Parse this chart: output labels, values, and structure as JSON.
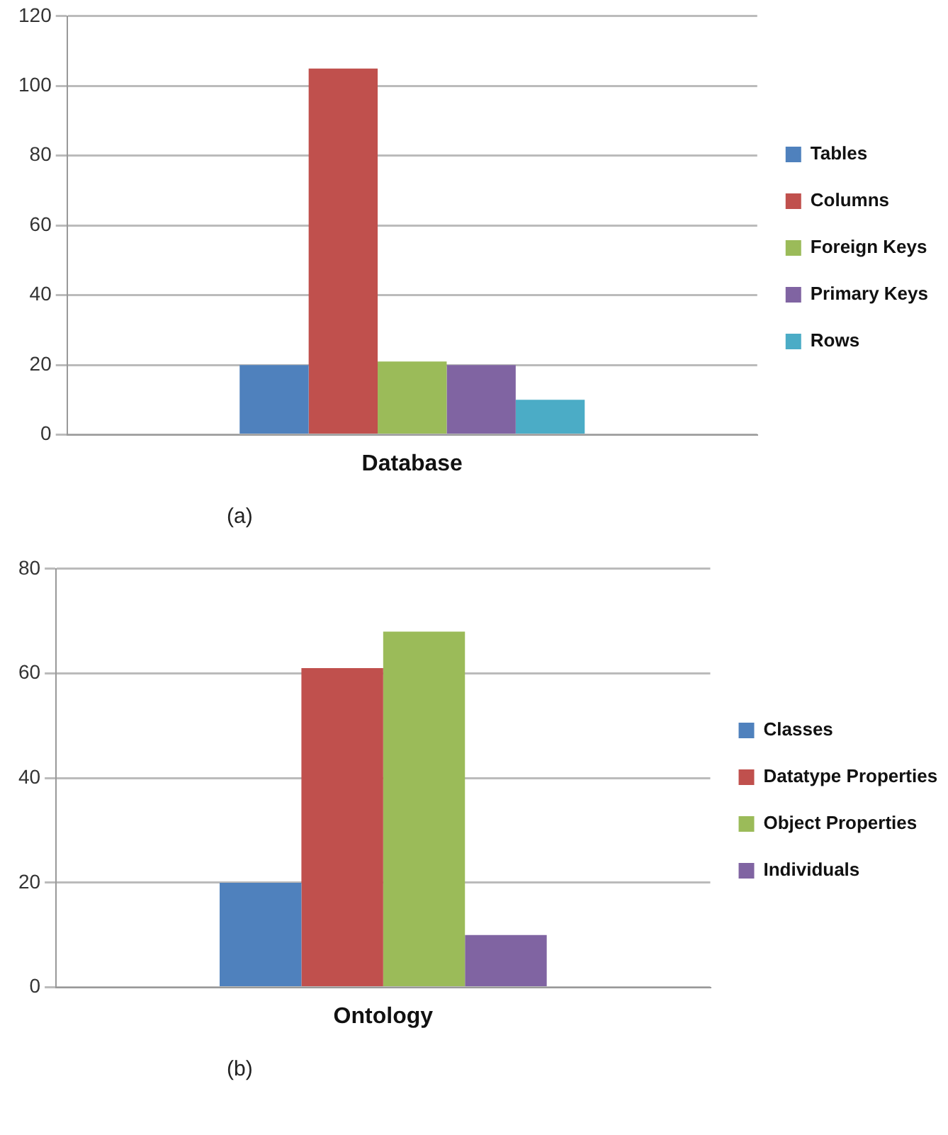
{
  "chart_data": [
    {
      "type": "bar",
      "categories": [
        "Database"
      ],
      "series": [
        {
          "name": "Tables",
          "color": "#4f81bd",
          "values": [
            20
          ]
        },
        {
          "name": "Columns",
          "color": "#c0504d",
          "values": [
            105
          ]
        },
        {
          "name": "Foreign Keys",
          "color": "#9bbb59",
          "values": [
            21
          ]
        },
        {
          "name": "Primary Keys",
          "color": "#8064a2",
          "values": [
            20
          ]
        },
        {
          "name": "Rows",
          "color": "#4bacc6",
          "values": [
            10
          ]
        }
      ],
      "ylim": [
        0,
        120
      ],
      "yticks": [
        0,
        20,
        40,
        60,
        80,
        100,
        120
      ],
      "grid": "y",
      "legend": "right",
      "annotations": [
        "(a)"
      ]
    },
    {
      "type": "bar",
      "categories": [
        "Ontology"
      ],
      "series": [
        {
          "name": "Classes",
          "color": "#4f81bd",
          "values": [
            20
          ]
        },
        {
          "name": "Datatype Properties",
          "color": "#c0504d",
          "values": [
            61
          ]
        },
        {
          "name": "Object Properties",
          "color": "#9bbb59",
          "values": [
            68
          ]
        },
        {
          "name": "Individuals",
          "color": "#8064a2",
          "values": [
            10
          ]
        }
      ],
      "ylim": [
        0,
        80
      ],
      "yticks": [
        0,
        20,
        40,
        60,
        80
      ],
      "grid": "y",
      "legend": "right",
      "annotations": [
        "(b)"
      ]
    }
  ]
}
